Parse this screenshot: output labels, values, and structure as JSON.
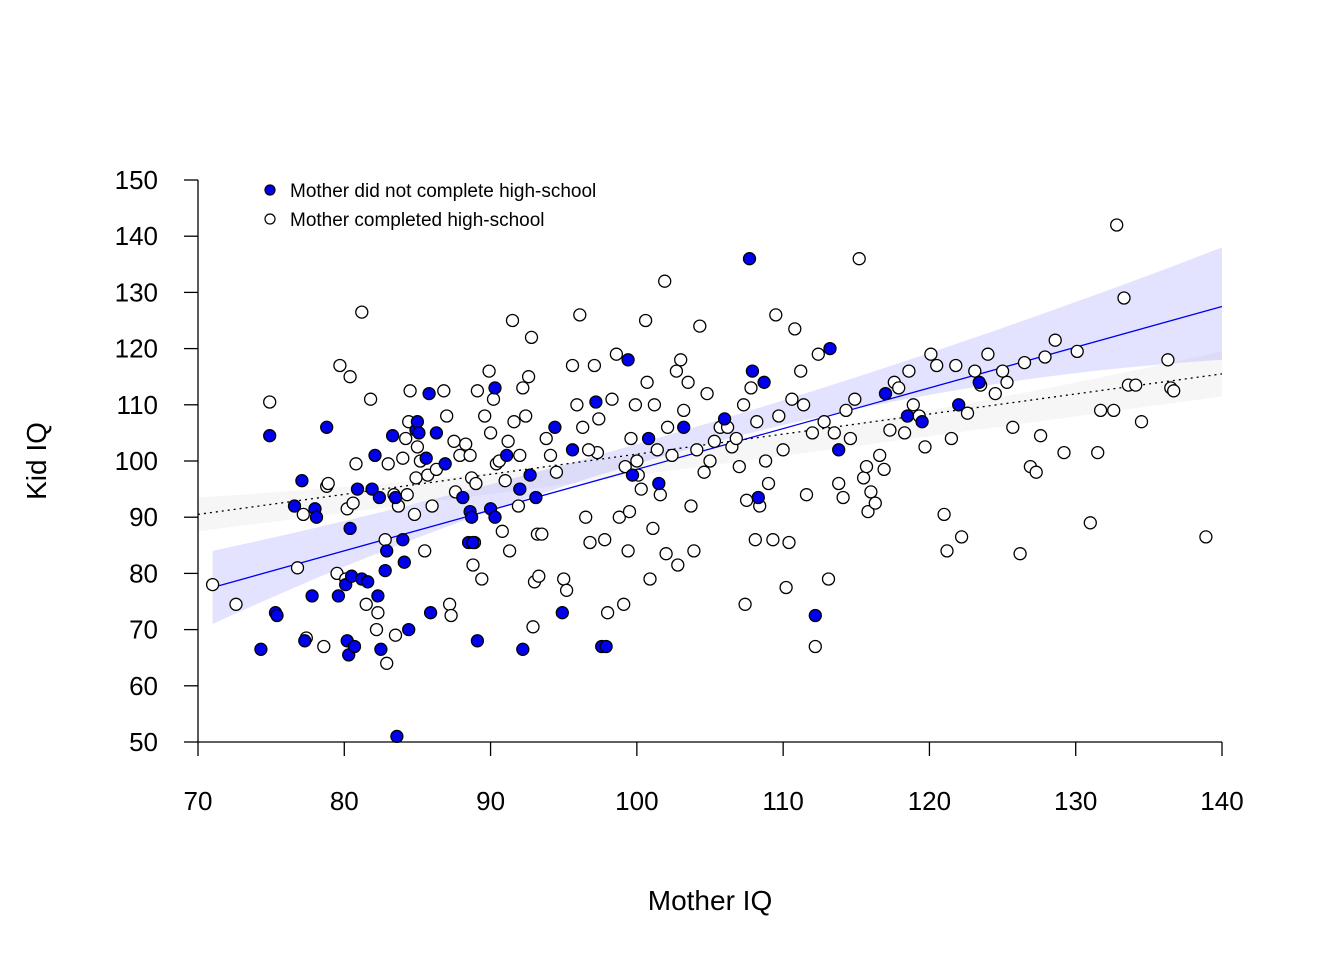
{
  "chart_data": {
    "type": "scatter",
    "xlabel": "Mother IQ",
    "ylabel": "Kid IQ",
    "xlim": [
      70,
      140
    ],
    "ylim": [
      50,
      150
    ],
    "xticks": [
      "70",
      "80",
      "90",
      "100",
      "110",
      "120",
      "130",
      "140"
    ],
    "yticks": [
      "50",
      "60",
      "70",
      "80",
      "90",
      "100",
      "110",
      "120",
      "130",
      "140",
      "150"
    ],
    "legend": {
      "position": "top-left",
      "entries": [
        {
          "label": "Mother did not complete high-school",
          "marker": "filled-circle",
          "color": "#0000ee"
        },
        {
          "label": "Mother completed high-school",
          "marker": "open-circle",
          "color": "#ffffff"
        }
      ]
    },
    "series": [
      {
        "name": "Mother did not complete high-school",
        "fill": "#0000ee",
        "stroke": "#000000",
        "fit": {
          "x": [
            71,
            140
          ],
          "y": [
            77.5,
            127.5
          ],
          "ci_low_x": [
            71,
            100,
            140
          ],
          "ci_low": [
            71,
            99.5,
            118
          ],
          "ci_high": [
            84,
            103,
            138
          ],
          "line_style": "solid",
          "line_color": "#0000ee",
          "band_color": "#9999ff"
        },
        "points": [
          [
            74.3,
            66.5
          ],
          [
            74.9,
            104.5
          ],
          [
            75.3,
            73
          ],
          [
            75.4,
            72.5
          ],
          [
            76.6,
            92
          ],
          [
            77.1,
            96.5
          ],
          [
            77.3,
            68
          ],
          [
            77.8,
            76
          ],
          [
            78,
            91.5
          ],
          [
            78.1,
            90
          ],
          [
            78.8,
            106
          ],
          [
            79.6,
            76
          ],
          [
            80.1,
            78
          ],
          [
            80.2,
            68
          ],
          [
            80.3,
            65.5
          ],
          [
            80.4,
            88
          ],
          [
            80.5,
            79.5
          ],
          [
            80.7,
            67
          ],
          [
            80.9,
            95
          ],
          [
            81.2,
            79
          ],
          [
            81.6,
            78.5
          ],
          [
            81.9,
            95
          ],
          [
            82.1,
            101
          ],
          [
            82.3,
            76
          ],
          [
            82.4,
            93.5
          ],
          [
            82.5,
            66.5
          ],
          [
            82.8,
            80.5
          ],
          [
            82.9,
            84
          ],
          [
            83.3,
            104.5
          ],
          [
            83.5,
            93.5
          ],
          [
            83.6,
            51
          ],
          [
            84.1,
            82
          ],
          [
            84.4,
            70
          ],
          [
            84.9,
            105.5
          ],
          [
            85,
            107
          ],
          [
            85.1,
            105
          ],
          [
            85.6,
            100.5
          ],
          [
            85.8,
            112
          ],
          [
            85.9,
            73
          ],
          [
            86.3,
            105
          ],
          [
            86.9,
            99.5
          ],
          [
            88.1,
            93.5
          ],
          [
            88.5,
            85.5
          ],
          [
            88.6,
            91
          ],
          [
            88.7,
            90
          ],
          [
            88.8,
            85.5
          ],
          [
            89.1,
            68
          ],
          [
            90,
            91.5
          ],
          [
            90.3,
            113
          ],
          [
            91.1,
            101
          ],
          [
            92,
            95
          ],
          [
            92.2,
            66.5
          ],
          [
            92.7,
            97.5
          ],
          [
            93.1,
            93.5
          ],
          [
            94.4,
            106
          ],
          [
            94.9,
            73
          ],
          [
            97.2,
            110.5
          ],
          [
            97.6,
            67
          ],
          [
            97.9,
            67
          ],
          [
            99.4,
            118
          ],
          [
            99.7,
            97.5
          ],
          [
            100.8,
            104
          ],
          [
            103.2,
            106
          ],
          [
            106,
            107.5
          ],
          [
            107.7,
            136
          ],
          [
            107.9,
            116
          ],
          [
            108.3,
            93.5
          ],
          [
            108.7,
            114
          ],
          [
            112.2,
            72.5
          ],
          [
            113.2,
            120
          ],
          [
            113.8,
            102
          ],
          [
            117,
            112
          ],
          [
            118.5,
            108
          ],
          [
            119.5,
            107
          ],
          [
            122,
            110
          ],
          [
            123.4,
            114
          ],
          [
            95.6,
            102
          ],
          [
            101.5,
            96
          ],
          [
            84,
            86
          ],
          [
            90.3,
            90
          ]
        ]
      },
      {
        "name": "Mother completed high-school",
        "fill": "#ffffff",
        "stroke": "#000000",
        "fit": {
          "x": [
            70,
            140
          ],
          "y": [
            90.5,
            115.5
          ],
          "ci_low_x": [
            70,
            100,
            140
          ],
          "ci_low": [
            87.5,
            97.5,
            111.5
          ],
          "ci_high": [
            93.5,
            101,
            119.5
          ],
          "line_style": "dotted",
          "line_color": "#000000",
          "band_color": "#dddddd"
        },
        "points": [
          [
            71,
            78
          ],
          [
            72.6,
            74.5
          ],
          [
            74.9,
            110.5
          ],
          [
            76.8,
            81
          ],
          [
            77.2,
            90.5
          ],
          [
            77.4,
            68.5
          ],
          [
            78.6,
            67
          ],
          [
            78.8,
            95.5
          ],
          [
            78.9,
            96
          ],
          [
            79.5,
            80
          ],
          [
            79.7,
            117
          ],
          [
            80.1,
            79
          ],
          [
            80.2,
            91.5
          ],
          [
            80.4,
            115
          ],
          [
            80.6,
            92.5
          ],
          [
            80.8,
            99.5
          ],
          [
            81.2,
            126.5
          ],
          [
            81.5,
            74.5
          ],
          [
            81.8,
            111
          ],
          [
            82.2,
            70
          ],
          [
            82.3,
            73
          ],
          [
            82.8,
            86
          ],
          [
            82.9,
            64
          ],
          [
            83,
            99.5
          ],
          [
            83.4,
            94
          ],
          [
            83.5,
            69
          ],
          [
            83.7,
            92
          ],
          [
            84,
            100.5
          ],
          [
            84.2,
            104
          ],
          [
            84.3,
            94
          ],
          [
            84.4,
            107
          ],
          [
            84.5,
            112.5
          ],
          [
            84.8,
            90.5
          ],
          [
            84.9,
            97
          ],
          [
            85,
            102.5
          ],
          [
            85.2,
            100
          ],
          [
            85.5,
            84
          ],
          [
            85.7,
            97.5
          ],
          [
            86,
            92
          ],
          [
            86.3,
            98.5
          ],
          [
            86.8,
            112.5
          ],
          [
            87,
            108
          ],
          [
            87.2,
            74.5
          ],
          [
            87.3,
            72.5
          ],
          [
            87.5,
            103.5
          ],
          [
            87.6,
            94.5
          ],
          [
            87.9,
            101
          ],
          [
            88.3,
            103
          ],
          [
            88.6,
            101
          ],
          [
            88.7,
            97
          ],
          [
            88.8,
            81.5
          ],
          [
            88.9,
            85.5
          ],
          [
            89,
            96
          ],
          [
            89.1,
            112.5
          ],
          [
            89.4,
            79
          ],
          [
            89.6,
            108
          ],
          [
            89.9,
            116
          ],
          [
            90,
            105
          ],
          [
            90.2,
            111
          ],
          [
            90.4,
            99.5
          ],
          [
            90.6,
            100
          ],
          [
            90.8,
            87.5
          ],
          [
            91,
            96.5
          ],
          [
            91.2,
            103.5
          ],
          [
            91.3,
            84
          ],
          [
            91.5,
            125
          ],
          [
            91.6,
            107
          ],
          [
            91.9,
            92
          ],
          [
            92,
            101
          ],
          [
            92.2,
            113
          ],
          [
            92.4,
            108
          ],
          [
            92.6,
            115
          ],
          [
            92.8,
            122
          ],
          [
            92.9,
            70.5
          ],
          [
            93,
            78.5
          ],
          [
            93.2,
            87
          ],
          [
            93.3,
            79.5
          ],
          [
            93.5,
            87
          ],
          [
            93.8,
            104
          ],
          [
            94.1,
            101
          ],
          [
            94.5,
            98
          ],
          [
            95,
            79
          ],
          [
            95.2,
            77
          ],
          [
            95.6,
            117
          ],
          [
            95.9,
            110
          ],
          [
            96.1,
            126
          ],
          [
            96.3,
            106
          ],
          [
            96.5,
            90
          ],
          [
            96.8,
            85.5
          ],
          [
            97.1,
            117
          ],
          [
            97.3,
            101.5
          ],
          [
            97.4,
            107.5
          ],
          [
            97.8,
            86
          ],
          [
            98,
            73
          ],
          [
            98.3,
            111
          ],
          [
            98.6,
            119
          ],
          [
            98.8,
            90
          ],
          [
            99.1,
            74.5
          ],
          [
            99.2,
            99
          ],
          [
            99.4,
            84
          ],
          [
            99.5,
            91
          ],
          [
            99.6,
            104
          ],
          [
            99.9,
            110
          ],
          [
            100,
            100
          ],
          [
            100.3,
            95
          ],
          [
            100.6,
            125
          ],
          [
            100.7,
            114
          ],
          [
            100.9,
            79
          ],
          [
            101.1,
            88
          ],
          [
            101.2,
            110
          ],
          [
            101.4,
            102
          ],
          [
            101.6,
            94
          ],
          [
            101.9,
            132
          ],
          [
            102,
            83.5
          ],
          [
            102.1,
            106
          ],
          [
            102.4,
            101
          ],
          [
            102.7,
            116
          ],
          [
            102.8,
            81.5
          ],
          [
            103,
            118
          ],
          [
            103.2,
            109
          ],
          [
            103.5,
            114
          ],
          [
            103.7,
            92
          ],
          [
            103.9,
            84
          ],
          [
            104.1,
            102
          ],
          [
            104.3,
            124
          ],
          [
            104.6,
            98
          ],
          [
            104.8,
            112
          ],
          [
            105,
            100
          ],
          [
            105.3,
            103.5
          ],
          [
            105.7,
            106
          ],
          [
            106.2,
            106
          ],
          [
            106.5,
            102.5
          ],
          [
            106.8,
            104
          ],
          [
            107,
            99
          ],
          [
            107.3,
            110
          ],
          [
            107.4,
            74.5
          ],
          [
            107.5,
            93
          ],
          [
            107.8,
            113
          ],
          [
            108.1,
            86
          ],
          [
            108.2,
            107
          ],
          [
            108.4,
            92
          ],
          [
            108.8,
            100
          ],
          [
            109,
            96
          ],
          [
            109.3,
            86
          ],
          [
            109.5,
            126
          ],
          [
            109.7,
            108
          ],
          [
            110,
            102
          ],
          [
            110.2,
            77.5
          ],
          [
            110.4,
            85.5
          ],
          [
            110.6,
            111
          ],
          [
            110.8,
            123.5
          ],
          [
            111.2,
            116
          ],
          [
            111.4,
            110
          ],
          [
            111.6,
            94
          ],
          [
            112,
            105
          ],
          [
            112.2,
            67
          ],
          [
            112.4,
            119
          ],
          [
            112.8,
            107
          ],
          [
            113.1,
            79
          ],
          [
            113.5,
            105
          ],
          [
            113.8,
            96
          ],
          [
            114.1,
            93.5
          ],
          [
            114.3,
            109
          ],
          [
            114.6,
            104
          ],
          [
            114.9,
            111
          ],
          [
            115.2,
            136
          ],
          [
            115.5,
            97
          ],
          [
            115.7,
            99
          ],
          [
            115.8,
            91
          ],
          [
            116,
            94.5
          ],
          [
            116.3,
            92.5
          ],
          [
            116.6,
            101
          ],
          [
            116.9,
            98.5
          ],
          [
            117.3,
            105.5
          ],
          [
            117.6,
            114
          ],
          [
            117.9,
            113
          ],
          [
            118.3,
            105
          ],
          [
            118.6,
            116
          ],
          [
            118.9,
            110
          ],
          [
            119.3,
            108
          ],
          [
            119.7,
            102.5
          ],
          [
            120.1,
            119
          ],
          [
            120.5,
            117
          ],
          [
            121,
            90.5
          ],
          [
            121.2,
            84
          ],
          [
            121.5,
            104
          ],
          [
            121.8,
            117
          ],
          [
            122.2,
            86.5
          ],
          [
            122.6,
            108.5
          ],
          [
            123.1,
            116
          ],
          [
            123.5,
            113.5
          ],
          [
            124,
            119
          ],
          [
            124.5,
            112
          ],
          [
            125,
            116
          ],
          [
            125.3,
            114
          ],
          [
            125.7,
            106
          ],
          [
            126.2,
            83.5
          ],
          [
            126.5,
            117.5
          ],
          [
            126.9,
            99
          ],
          [
            127.3,
            98
          ],
          [
            127.6,
            104.5
          ],
          [
            127.9,
            118.5
          ],
          [
            128.6,
            121.5
          ],
          [
            129.2,
            101.5
          ],
          [
            130.1,
            119.5
          ],
          [
            131,
            89
          ],
          [
            131.5,
            101.5
          ],
          [
            131.7,
            109
          ],
          [
            132.6,
            109
          ],
          [
            132.8,
            142
          ],
          [
            133.3,
            129
          ],
          [
            133.6,
            113.5
          ],
          [
            134.1,
            113.5
          ],
          [
            134.5,
            107
          ],
          [
            136.3,
            118
          ],
          [
            136.5,
            113
          ],
          [
            136.7,
            112.5
          ],
          [
            138.9,
            86.5
          ],
          [
            100.1,
            97.5
          ],
          [
            96.7,
            102
          ]
        ]
      }
    ]
  }
}
